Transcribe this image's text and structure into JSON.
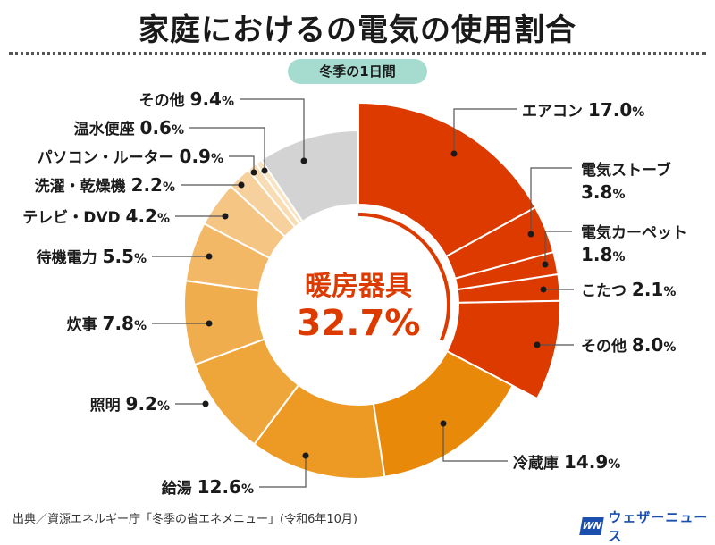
{
  "header": {
    "title": "家庭におけるの電気の使用割合",
    "period_badge": "冬季の1日間"
  },
  "chart_data": {
    "type": "pie",
    "variant": "donut",
    "title": "家庭におけるの電気の使用割合",
    "subtitle": "冬季の1日間",
    "unit": "%",
    "center_label": {
      "name": "暖房器具",
      "value": 32.7,
      "text": "32.7%"
    },
    "slices": [
      {
        "name": "エアコン",
        "value": 17.0,
        "text": "17.0",
        "group": "暖房器具",
        "color": "#dd3a00"
      },
      {
        "name": "電気ストーブ",
        "value": 3.8,
        "text": "3.8",
        "group": "暖房器具",
        "color": "#dd3a00"
      },
      {
        "name": "電気カーペット",
        "value": 1.8,
        "text": "1.8",
        "group": "暖房器具",
        "color": "#dd3a00"
      },
      {
        "name": "こたつ",
        "value": 2.1,
        "text": "2.1",
        "group": "暖房器具",
        "color": "#dd3a00"
      },
      {
        "name": "その他",
        "value": 8.0,
        "text": "8.0",
        "group": "暖房器具",
        "color": "#dd3a00"
      },
      {
        "name": "冷蔵庫",
        "value": 14.9,
        "text": "14.9",
        "group": "",
        "color": "#e8890a"
      },
      {
        "name": "給湯",
        "value": 12.6,
        "text": "12.6",
        "group": "",
        "color": "#ec9a23"
      },
      {
        "name": "照明",
        "value": 9.2,
        "text": "9.2",
        "group": "",
        "color": "#eea53a"
      },
      {
        "name": "炊事",
        "value": 7.8,
        "text": "7.8",
        "group": "",
        "color": "#f0ad4e"
      },
      {
        "name": "待機電力",
        "value": 5.5,
        "text": "5.5",
        "group": "",
        "color": "#f2b866"
      },
      {
        "name": "テレビ・DVD",
        "value": 4.2,
        "text": "4.2",
        "group": "",
        "color": "#f4c583"
      },
      {
        "name": "洗濯・乾燥機",
        "value": 2.2,
        "text": "2.2",
        "group": "",
        "color": "#f6d19d"
      },
      {
        "name": "パソコン・ルーター",
        "value": 0.9,
        "text": "0.9",
        "group": "",
        "color": "#f8dcb3"
      },
      {
        "name": "温水便座",
        "value": 0.6,
        "text": "0.6",
        "group": "",
        "color": "#f9e4c3"
      },
      {
        "name": "その他",
        "value": 9.4,
        "text": "9.4",
        "group": "",
        "color": "#d3d3d3"
      }
    ],
    "percent_sign": "%"
  },
  "footer": {
    "source": "出典／資源エネルギー庁「冬季の省エネメニュー」(令和6年10月)",
    "brand_mark": "WN",
    "brand_name": "ウェザーニュース",
    "brand_color": "#1a4fb0"
  }
}
